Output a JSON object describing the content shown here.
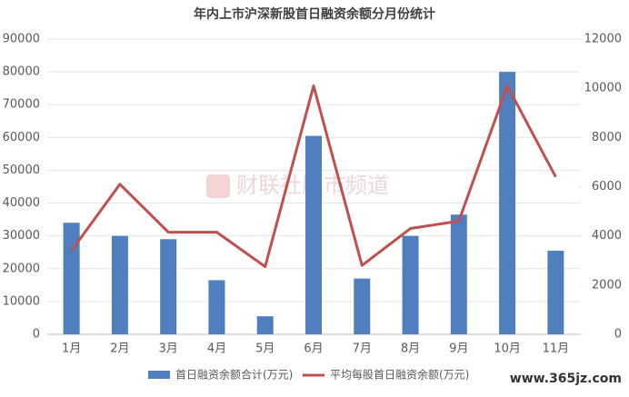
{
  "chart_data": {
    "type": "bar-line",
    "title": "年内上市沪深新股首日融资余额分月份统计",
    "categories": [
      "1月",
      "2月",
      "3月",
      "4月",
      "5月",
      "6月",
      "7月",
      "8月",
      "9月",
      "10月",
      "11月"
    ],
    "series": [
      {
        "name": "首日融资余额合计(万元)",
        "type": "bar",
        "color": "#4f7fbe",
        "axis": "y",
        "values": [
          34000,
          30000,
          29000,
          16500,
          5500,
          60500,
          17000,
          30000,
          36500,
          80000,
          25500
        ]
      },
      {
        "name": "平均每股首日融资余额(万元)",
        "type": "line",
        "color": "#c0504d",
        "axis": "y2",
        "values": [
          3400,
          6100,
          4150,
          4150,
          2750,
          10100,
          2800,
          4300,
          4600,
          10100,
          6400
        ]
      }
    ],
    "ylim": [
      0,
      90000
    ],
    "yticks": [
      0,
      10000,
      20000,
      30000,
      40000,
      50000,
      60000,
      70000,
      80000,
      90000
    ],
    "y2lim": [
      0,
      12000
    ],
    "y2ticks": [
      0,
      2000,
      4000,
      6000,
      8000,
      10000,
      12000
    ],
    "grid": true,
    "legend": "bottom",
    "watermark": "财联社股市频道",
    "footer": "www.365jz.com"
  }
}
